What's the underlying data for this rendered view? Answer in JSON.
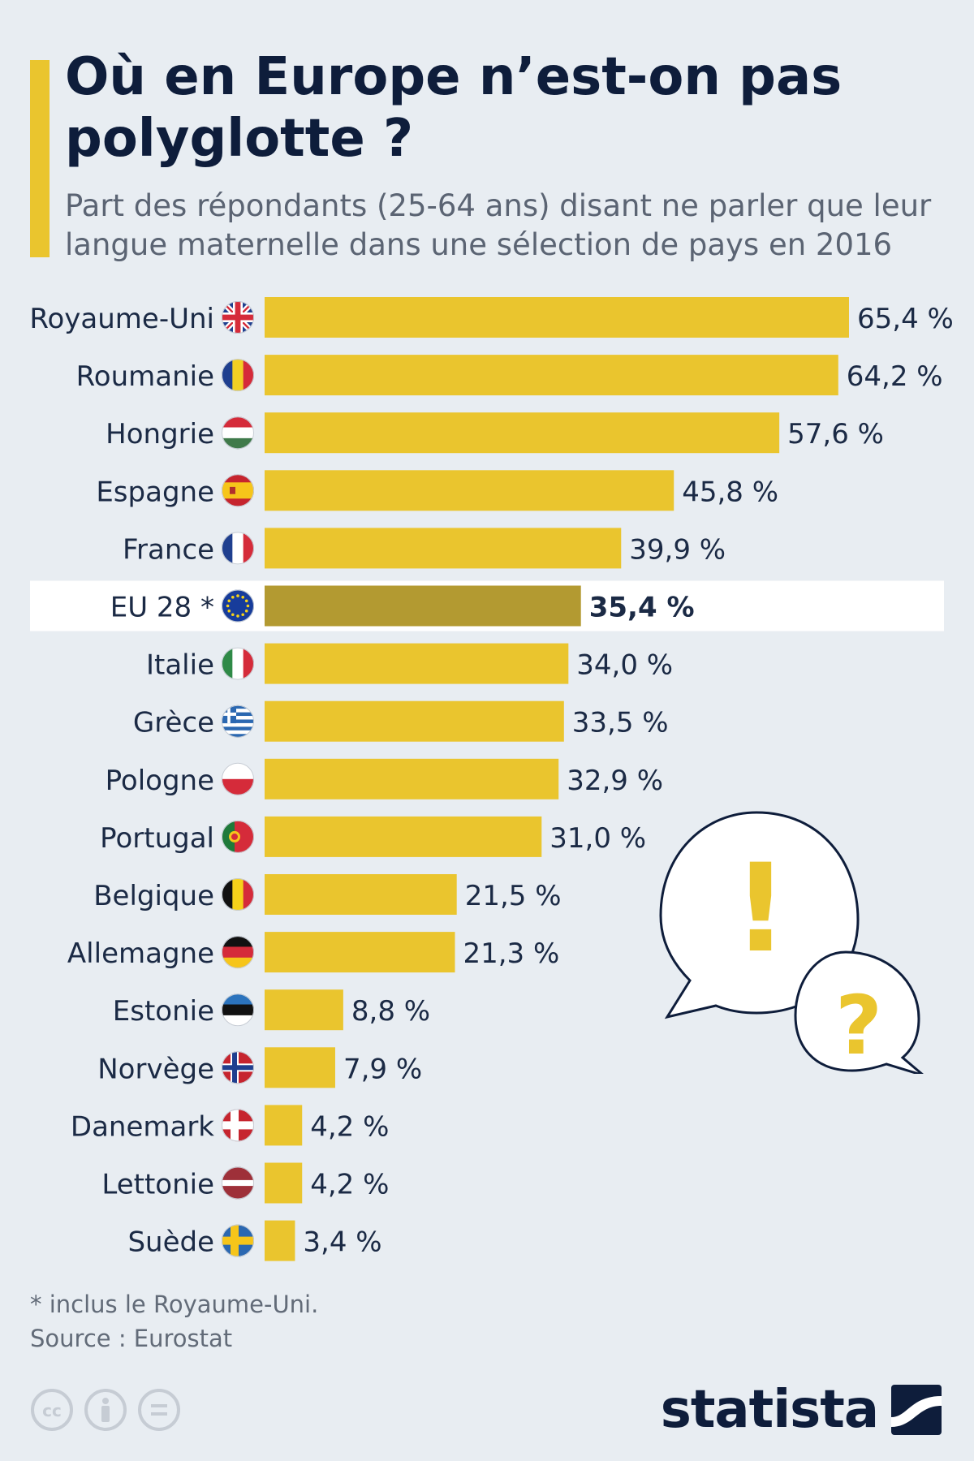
{
  "header": {
    "title": "Où en Europe n’est-on pas polyglotte ?",
    "subtitle": "Part des répondants (25-64 ans) disant ne parler que leur langue maternelle dans une sélection de pays en 2016"
  },
  "chart_data": {
    "type": "bar",
    "orientation": "horizontal",
    "categories": [
      "Royaume-Uni",
      "Roumanie",
      "Hongrie",
      "Espagne",
      "France",
      "EU 28 *",
      "Italie",
      "Grèce",
      "Pologne",
      "Portugal",
      "Belgique",
      "Allemagne",
      "Estonie",
      "Norvège",
      "Danemark",
      "Lettonie",
      "Suède"
    ],
    "flags": [
      "uk",
      "ro",
      "hu",
      "es",
      "fr",
      "eu",
      "it",
      "gr",
      "pl",
      "pt",
      "be",
      "de",
      "ee",
      "no",
      "dk",
      "lv",
      "se"
    ],
    "values": [
      65.4,
      64.2,
      57.6,
      45.8,
      39.9,
      35.4,
      34.0,
      33.5,
      32.9,
      31.0,
      21.5,
      21.3,
      8.8,
      7.9,
      4.2,
      4.2,
      3.4
    ],
    "value_labels": [
      "65,4 %",
      "64,2 %",
      "57,6 %",
      "45,8 %",
      "39,9 %",
      "35,4 %",
      "34,0 %",
      "33,5 %",
      "32,9 %",
      "31,0 %",
      "21,5 %",
      "21,3 %",
      "8,8 %",
      "7,9 %",
      "4,2 %",
      "4,2 %",
      "3,4 %"
    ],
    "highlight_index": 5,
    "xlim": [
      0,
      65.4
    ],
    "grid": false,
    "colors": {
      "bar": "#eac52e",
      "highlight": "#b39a31",
      "highlight_band": "#ffffff"
    }
  },
  "illustration": {
    "exclamation": "!",
    "question": "?"
  },
  "footer": {
    "footnote": "* inclus le Royaume-Uni.",
    "source": "Source : Eurostat",
    "brand": "statista",
    "license_icons": [
      "cc-icon",
      "attribution-icon",
      "no-derivatives-icon"
    ]
  },
  "theme": {
    "background": "#e8edf2",
    "text": "#1b2a45",
    "accent": "#eac52e"
  }
}
